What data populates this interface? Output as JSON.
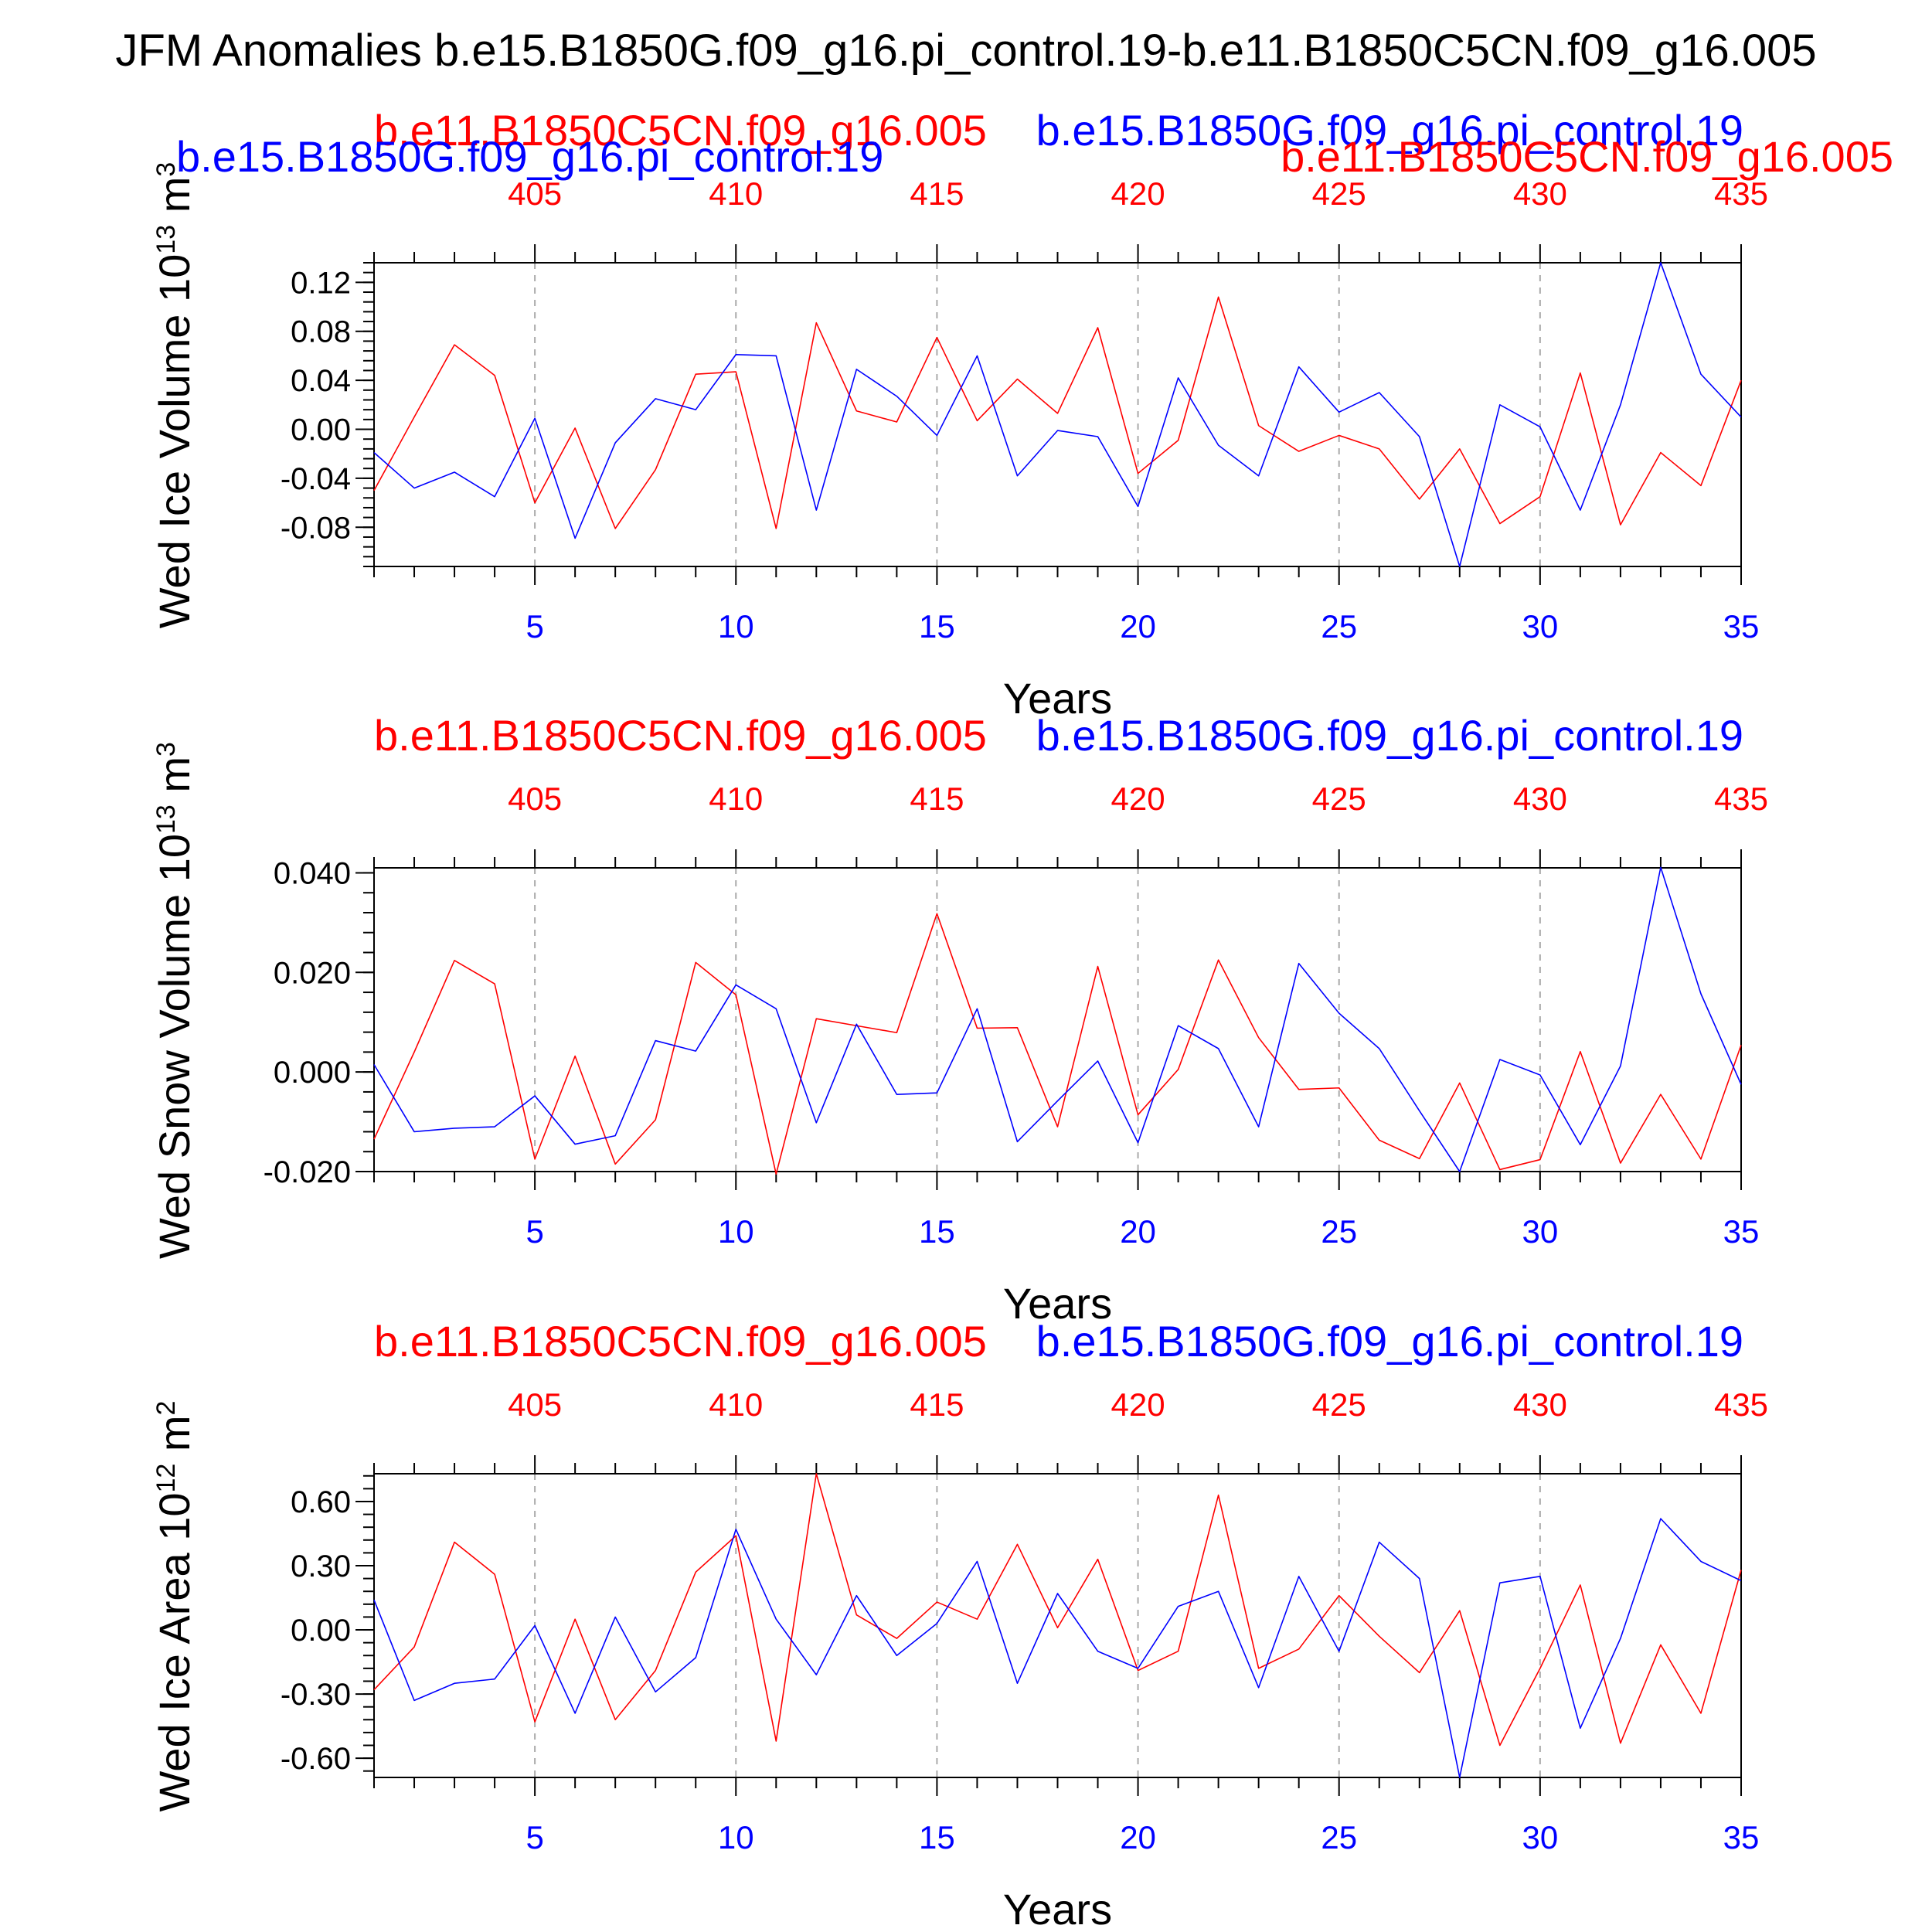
{
  "figure": {
    "title": "JFM Anomalies b.e15.B1850G.f09_g16.pi_control.19-b.e11.B1850C5CN.f09_g16.005",
    "colors": {
      "case_blue": "#0000ff",
      "case_red": "#ff0000",
      "axis": "#000000",
      "grid": "#aaaaaa"
    }
  },
  "chart_data": [
    {
      "type": "line",
      "ylabel": "Wed Ice Volume 10",
      "ylabel_sup": "13",
      "ylabel_unit": " m",
      "ylabel_unit_sup": "3",
      "xlabel": "Years",
      "case_labels": {
        "red_left": "b.e11.B1850C5CN.f09_g16.005",
        "blue_right": "b.e15.B1850G.f09_g16.pi_control.19",
        "blue_left": "b.e15.B1850G.f09_g16.pi_control.19",
        "red_right": "b.e11.B1850C5CN.f09_g16.005"
      },
      "xlim": [
        1,
        35
      ],
      "ylim": [
        -0.112,
        0.136
      ],
      "yticks": [
        -0.08,
        -0.04,
        0.0,
        0.04,
        0.08,
        0.12
      ],
      "ytick_labels": [
        "-0.08",
        "-0.04",
        "0.00",
        "0.04",
        "0.08",
        "0.12"
      ],
      "yminor_step": 0.008,
      "xticks_bottom": [
        5,
        10,
        15,
        20,
        25,
        30,
        35
      ],
      "xtick_labels_bottom": [
        "5",
        "10",
        "15",
        "20",
        "25",
        "30",
        "35"
      ],
      "xtick_labels_top": [
        "405",
        "410",
        "415",
        "420",
        "425",
        "430",
        "435"
      ],
      "vgrid": [
        5,
        10,
        15,
        20,
        25,
        30
      ],
      "series": [
        {
          "name": "b.e15.B1850G.f09_g16.pi_control.19",
          "color": "#0000ff",
          "x": [
            1,
            2,
            3,
            4,
            5,
            6,
            7,
            8,
            9,
            10,
            11,
            12,
            13,
            14,
            15,
            16,
            17,
            18,
            19,
            20,
            21,
            22,
            23,
            24,
            25,
            26,
            27,
            28,
            29,
            30,
            31,
            32,
            33,
            34,
            35
          ],
          "values": [
            -0.019,
            -0.048,
            -0.035,
            -0.055,
            0.009,
            -0.089,
            -0.011,
            0.025,
            0.016,
            0.061,
            0.06,
            -0.066,
            0.049,
            0.027,
            -0.005,
            0.06,
            -0.038,
            -0.001,
            -0.006,
            -0.063,
            0.042,
            -0.013,
            -0.038,
            0.051,
            0.014,
            0.03,
            -0.006,
            -0.112,
            0.02,
            0.002,
            -0.066,
            0.02,
            0.136,
            0.045,
            0.01
          ]
        },
        {
          "name": "b.e11.B1850C5CN.f09_g16.005",
          "color": "#ff0000",
          "x": [
            1,
            2,
            3,
            4,
            5,
            6,
            7,
            8,
            9,
            10,
            11,
            12,
            13,
            14,
            15,
            16,
            17,
            18,
            19,
            20,
            21,
            22,
            23,
            24,
            25,
            26,
            27,
            28,
            29,
            30,
            31,
            32,
            33,
            34,
            35
          ],
          "values": [
            -0.05,
            0.01,
            0.069,
            0.044,
            -0.06,
            0.001,
            -0.081,
            -0.033,
            0.045,
            0.047,
            -0.081,
            0.087,
            0.015,
            0.006,
            0.075,
            0.007,
            0.041,
            0.013,
            0.083,
            -0.036,
            -0.009,
            0.108,
            0.003,
            -0.018,
            -0.005,
            -0.016,
            -0.057,
            -0.016,
            -0.077,
            -0.055,
            0.046,
            -0.078,
            -0.019,
            -0.046,
            0.04
          ]
        }
      ]
    },
    {
      "type": "line",
      "ylabel": "Wed Snow Volume 10",
      "ylabel_sup": "13",
      "ylabel_unit": " m",
      "ylabel_unit_sup": "3",
      "xlabel": "Years",
      "case_labels": {
        "red_left": "b.e11.B1850C5CN.f09_g16.005",
        "blue_right": "b.e15.B1850G.f09_g16.pi_control.19"
      },
      "xlim": [
        1,
        35
      ],
      "ylim": [
        -0.02,
        0.041
      ],
      "yticks": [
        -0.02,
        0.0,
        0.02,
        0.04
      ],
      "ytick_labels": [
        "-0.020",
        "0.000",
        "0.020",
        "0.040"
      ],
      "yminor_step": 0.004,
      "xticks_bottom": [
        5,
        10,
        15,
        20,
        25,
        30,
        35
      ],
      "xtick_labels_bottom": [
        "5",
        "10",
        "15",
        "20",
        "25",
        "30",
        "35"
      ],
      "xtick_labels_top": [
        "405",
        "410",
        "415",
        "420",
        "425",
        "430",
        "435"
      ],
      "vgrid": [
        5,
        10,
        15,
        20,
        25,
        30
      ],
      "series": [
        {
          "name": "b.e15.B1850G.f09_g16.pi_control.19",
          "color": "#0000ff",
          "x": [
            1,
            2,
            3,
            4,
            5,
            6,
            7,
            8,
            9,
            10,
            11,
            12,
            13,
            14,
            15,
            16,
            17,
            18,
            19,
            20,
            21,
            22,
            23,
            24,
            25,
            26,
            27,
            28,
            29,
            30,
            31,
            32,
            33,
            34,
            35
          ],
          "values": [
            0.0015,
            -0.012,
            -0.0113,
            -0.011,
            -0.0048,
            -0.0145,
            -0.0128,
            0.0063,
            0.0042,
            0.0175,
            0.0127,
            -0.0102,
            0.0096,
            -0.0045,
            -0.0042,
            0.0127,
            -0.014,
            -0.0058,
            0.0022,
            -0.0142,
            0.0093,
            0.0047,
            -0.011,
            0.0218,
            0.0118,
            0.0047,
            -0.0078,
            -0.02,
            0.0025,
            -0.0006,
            -0.0146,
            0.0012,
            0.0411,
            0.0157,
            -0.0025
          ]
        },
        {
          "name": "b.e11.B1850C5CN.f09_g16.005",
          "color": "#ff0000",
          "x": [
            1,
            2,
            3,
            4,
            5,
            6,
            7,
            8,
            9,
            10,
            11,
            12,
            13,
            14,
            15,
            16,
            17,
            18,
            19,
            20,
            21,
            22,
            23,
            24,
            25,
            26,
            27,
            28,
            29,
            30,
            31,
            32,
            33,
            34,
            35
          ],
          "values": [
            -0.0135,
            0.004,
            0.0224,
            0.0177,
            -0.0175,
            0.0032,
            -0.0185,
            -0.0096,
            0.022,
            0.0155,
            -0.0205,
            0.0107,
            0.0093,
            0.0079,
            0.0318,
            0.0088,
            0.0089,
            -0.011,
            0.0212,
            -0.0086,
            0.0005,
            0.0225,
            0.0069,
            -0.0035,
            -0.0032,
            -0.0137,
            -0.0174,
            -0.0022,
            -0.0196,
            -0.0176,
            0.0041,
            -0.0183,
            -0.0045,
            -0.0175,
            0.0054
          ]
        }
      ]
    },
    {
      "type": "line",
      "ylabel": "Wed Ice Area 10",
      "ylabel_sup": "12",
      "ylabel_unit": " m",
      "ylabel_unit_sup": "2",
      "xlabel": "Years",
      "case_labels": {
        "red_left": "b.e11.B1850C5CN.f09_g16.005",
        "blue_right": "b.e15.B1850G.f09_g16.pi_control.19"
      },
      "xlim": [
        1,
        35
      ],
      "ylim": [
        -0.69,
        0.73
      ],
      "yticks": [
        -0.6,
        -0.3,
        0.0,
        0.3,
        0.6
      ],
      "ytick_labels": [
        "-0.60",
        "-0.30",
        "0.00",
        "0.30",
        "0.60"
      ],
      "yminor_step": 0.06,
      "xticks_bottom": [
        5,
        10,
        15,
        20,
        25,
        30,
        35
      ],
      "xtick_labels_bottom": [
        "5",
        "10",
        "15",
        "20",
        "25",
        "30",
        "35"
      ],
      "xtick_labels_top": [
        "405",
        "410",
        "415",
        "420",
        "425",
        "430",
        "435"
      ],
      "vgrid": [
        5,
        10,
        15,
        20,
        25,
        30
      ],
      "series": [
        {
          "name": "b.e15.B1850G.f09_g16.pi_control.19",
          "color": "#0000ff",
          "x": [
            1,
            2,
            3,
            4,
            5,
            6,
            7,
            8,
            9,
            10,
            11,
            12,
            13,
            14,
            15,
            16,
            17,
            18,
            19,
            20,
            21,
            22,
            23,
            24,
            25,
            26,
            27,
            28,
            29,
            30,
            31,
            32,
            33,
            34,
            35
          ],
          "values": [
            0.14,
            -0.33,
            -0.25,
            -0.23,
            0.02,
            -0.39,
            0.06,
            -0.29,
            -0.13,
            0.47,
            0.05,
            -0.21,
            0.16,
            -0.12,
            0.03,
            0.32,
            -0.25,
            0.17,
            -0.1,
            -0.18,
            0.11,
            0.18,
            -0.27,
            0.25,
            -0.1,
            0.41,
            0.24,
            -0.69,
            0.22,
            0.25,
            -0.46,
            -0.04,
            0.52,
            0.32,
            0.23
          ]
        },
        {
          "name": "b.e11.B1850C5CN.f09_g16.005",
          "color": "#ff0000",
          "x": [
            1,
            2,
            3,
            4,
            5,
            6,
            7,
            8,
            9,
            10,
            11,
            12,
            13,
            14,
            15,
            16,
            17,
            18,
            19,
            20,
            21,
            22,
            23,
            24,
            25,
            26,
            27,
            28,
            29,
            30,
            31,
            32,
            33,
            34,
            35
          ],
          "values": [
            -0.28,
            -0.08,
            0.41,
            0.26,
            -0.43,
            0.05,
            -0.42,
            -0.19,
            0.27,
            0.44,
            -0.52,
            0.73,
            0.07,
            -0.04,
            0.13,
            0.05,
            0.4,
            0.01,
            0.33,
            -0.19,
            -0.1,
            0.63,
            -0.18,
            -0.09,
            0.16,
            -0.03,
            -0.2,
            0.09,
            -0.54,
            -0.18,
            0.21,
            -0.53,
            -0.07,
            -0.39,
            0.28
          ]
        }
      ]
    }
  ]
}
